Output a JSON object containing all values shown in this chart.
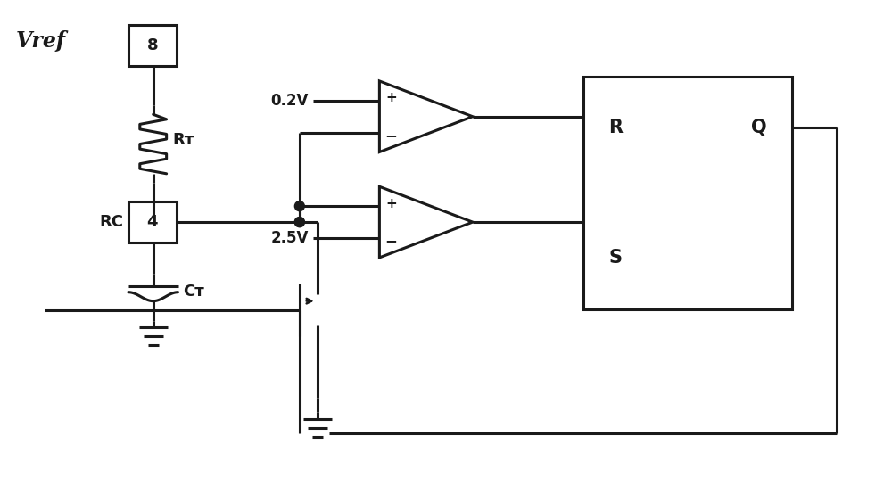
{
  "bg_color": "#ffffff",
  "line_color": "#1a1a1a",
  "lw": 2.2,
  "fig_width": 10.0,
  "fig_height": 5.35,
  "dpi": 100,
  "xlim": [
    0,
    10
  ],
  "ylim": [
    0,
    5.35
  ]
}
